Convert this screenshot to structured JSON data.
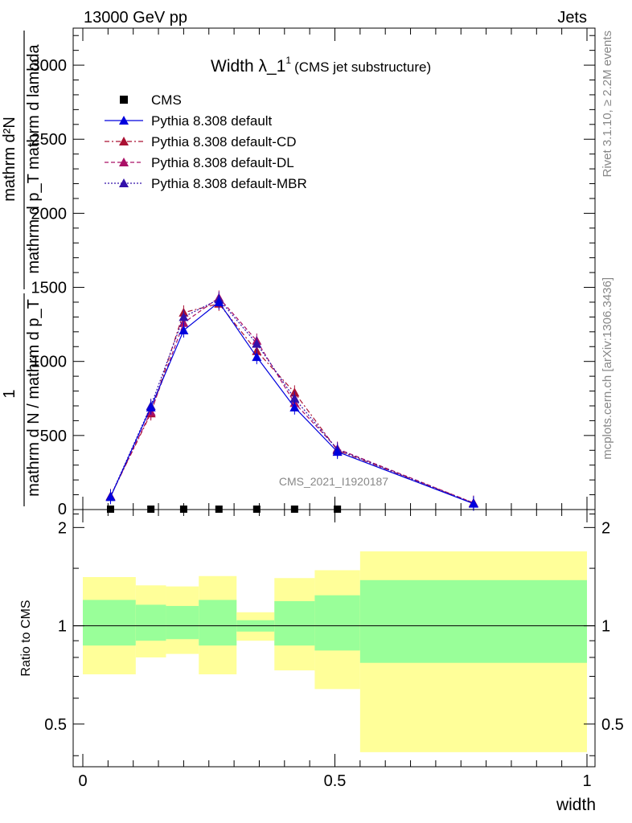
{
  "header": {
    "left": "13000 GeV pp",
    "right": "Jets"
  },
  "side_labels": {
    "rivet": "Rivet 3.1.10, ≥ 2.2M events",
    "mcplots": "mcplots.cern.ch [arXiv:1306.3436]"
  },
  "chart_data": [
    {
      "type": "line",
      "title": "Width λ_1",
      "title_sup": "1",
      "subtitle": "(CMS jet substructure)",
      "ylabel_numerator": "mathrm d²N",
      "ylabel_denominator": "mathrm d p_T mathrm d lambda",
      "ylabel_prefactor_numerator": "1",
      "ylabel_prefactor_denominator": "mathrm d N / mathrm d p_T",
      "ylabel_sub": "T",
      "watermark": "CMS_2021_I1920187",
      "xlim": [
        0,
        1
      ],
      "ylim": [
        0,
        3250
      ],
      "y_ticks": [
        "500",
        "1000",
        "1500",
        "2000",
        "2500",
        "3000"
      ],
      "y_tick_values": [
        500,
        1000,
        1500,
        2000,
        2500,
        3000
      ],
      "legend_position": "top-left",
      "series": [
        {
          "name": "CMS",
          "marker": "square",
          "color": "#000000",
          "x": [
            0.055,
            0.135,
            0.2,
            0.27,
            0.345,
            0.42,
            0.505
          ],
          "values": [
            0,
            0,
            0,
            0,
            0,
            0,
            0
          ]
        },
        {
          "name": "Pythia 8.308 default",
          "marker": "triangle",
          "linestyle": "solid",
          "color": "#0000dd",
          "x": [
            0.055,
            0.135,
            0.2,
            0.27,
            0.345,
            0.42,
            0.505,
            0.775
          ],
          "values": [
            85,
            690,
            1210,
            1400,
            1030,
            690,
            390,
            40
          ]
        },
        {
          "name": "Pythia 8.308 default-CD",
          "marker": "triangle",
          "linestyle": "dashdot",
          "color": "#aa1133",
          "x": [
            0.055,
            0.135,
            0.2,
            0.27,
            0.345,
            0.42,
            0.505,
            0.775
          ],
          "values": [
            90,
            650,
            1330,
            1390,
            1070,
            790,
            400,
            45
          ]
        },
        {
          "name": "Pythia 8.308 default-DL",
          "marker": "triangle",
          "linestyle": "dashed",
          "color": "#aa1166",
          "x": [
            0.055,
            0.135,
            0.2,
            0.27,
            0.345,
            0.42,
            0.505,
            0.775
          ],
          "values": [
            90,
            660,
            1260,
            1430,
            1140,
            720,
            410,
            45
          ]
        },
        {
          "name": "Pythia 8.308 default-MBR",
          "marker": "triangle",
          "linestyle": "dotted",
          "color": "#3311aa",
          "x": [
            0.055,
            0.135,
            0.2,
            0.27,
            0.345,
            0.42,
            0.505,
            0.775
          ],
          "values": [
            88,
            700,
            1300,
            1420,
            1120,
            750,
            405,
            42
          ]
        }
      ]
    },
    {
      "type": "area",
      "title": "",
      "ylabel": "Ratio to CMS",
      "xlabel": "width",
      "xlim": [
        0,
        1
      ],
      "ylim": [
        0.37,
        2.27
      ],
      "x_ticks": [
        "0",
        "0.5",
        "1"
      ],
      "x_tick_values": [
        0,
        0.5,
        1
      ],
      "y_ticks": [
        "0.5",
        "1",
        "2"
      ],
      "y_tick_values": [
        0.5,
        1,
        2
      ],
      "reference_line": 1,
      "colors": {
        "outer_band": "#ffff99",
        "inner_band": "#99ff99"
      },
      "bins": [
        {
          "lo": 0.0,
          "hi": 0.105,
          "outer": [
            0.71,
            1.41
          ],
          "inner": [
            0.87,
            1.2
          ]
        },
        {
          "lo": 0.105,
          "hi": 0.165,
          "outer": [
            0.8,
            1.33
          ],
          "inner": [
            0.9,
            1.16
          ]
        },
        {
          "lo": 0.165,
          "hi": 0.23,
          "outer": [
            0.82,
            1.32
          ],
          "inner": [
            0.91,
            1.15
          ]
        },
        {
          "lo": 0.23,
          "hi": 0.305,
          "outer": [
            0.71,
            1.42
          ],
          "inner": [
            0.87,
            1.2
          ]
        },
        {
          "lo": 0.305,
          "hi": 0.38,
          "outer": [
            0.9,
            1.1
          ],
          "inner": [
            0.96,
            1.04
          ]
        },
        {
          "lo": 0.38,
          "hi": 0.46,
          "outer": [
            0.73,
            1.4
          ],
          "inner": [
            0.87,
            1.19
          ]
        },
        {
          "lo": 0.46,
          "hi": 0.55,
          "outer": [
            0.64,
            1.48
          ],
          "inner": [
            0.84,
            1.24
          ]
        },
        {
          "lo": 0.55,
          "hi": 1.0,
          "outer": [
            0.41,
            1.69
          ],
          "inner": [
            0.77,
            1.38
          ]
        }
      ]
    }
  ]
}
